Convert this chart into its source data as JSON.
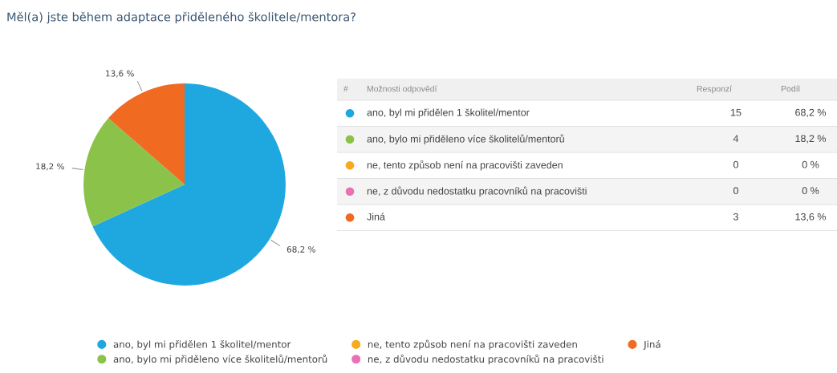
{
  "chart_data": {
    "type": "pie",
    "title": "Měl(a) jste během adaptace přiděleného školitele/mentora?",
    "categories": [
      "ano, byl mi přidělen 1 školitel/mentor",
      "ano, bylo mi přiděleno více školitelů/mentorů",
      "ne, tento způsob není na pracovišti zaveden",
      "ne, z důvodu nedostatku pracovníků na pracovišti",
      "Jiná"
    ],
    "values": [
      68.2,
      18.2,
      0,
      0,
      13.6
    ],
    "colors": [
      "#1fa8e0",
      "#8bc34a",
      "#f8a91f",
      "#e872b4",
      "#f06a22"
    ],
    "value_labels": [
      "68,2 %",
      "18,2 %",
      "0 %",
      "0 %",
      "13,6 %"
    ],
    "annotations": [
      "#",
      "Možnosti odpovědí",
      "Responzí",
      "Podíl",
      "15",
      "4",
      "0",
      "0",
      "3"
    ],
    "legend": "bottom"
  }
}
